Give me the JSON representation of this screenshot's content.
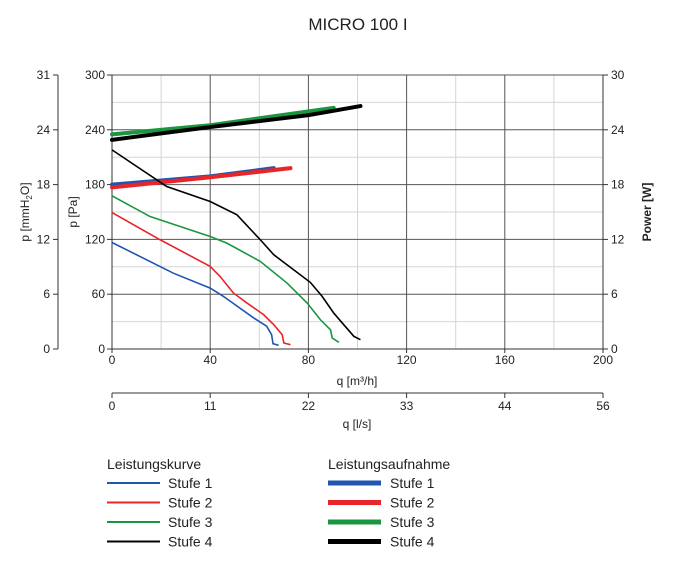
{
  "chart_data": {
    "type": "line",
    "title": "MICRO 100 I",
    "xlabel": "q [m³/h]",
    "x2label": "q [l/s]",
    "ylabel": "p [Pa]",
    "y2label": "p [mmH2O]",
    "y2label_parts": {
      "pre": "p [mmH",
      "sub": "2",
      "post": "O]"
    },
    "y3label": "Power [W]",
    "xlim": [
      0,
      200
    ],
    "xticks": [
      "0",
      "40",
      "80",
      "120",
      "160",
      "200"
    ],
    "x2lim": [
      0,
      56
    ],
    "x2ticks": [
      "0",
      "11",
      "22",
      "33",
      "44",
      "56"
    ],
    "ylim": [
      0,
      300
    ],
    "yticks": [
      "0",
      "60",
      "120",
      "180",
      "240",
      "300"
    ],
    "y2lim": [
      0,
      31
    ],
    "y2ticks": [
      "0",
      "6",
      "12",
      "18",
      "24",
      "31"
    ],
    "y3lim": [
      0,
      30
    ],
    "y3ticks": [
      "0",
      "6",
      "12",
      "18",
      "24",
      "30"
    ],
    "grid": true,
    "legend": {
      "placement": "bottom",
      "group1_title": "Leistungskurve",
      "group2_title": "Leistungsaufnahme"
    },
    "pressure_series": [
      {
        "name": "Stufe 1",
        "color": "#1f56b0",
        "points": [
          [
            0,
            116.6
          ],
          [
            25,
            83
          ],
          [
            40,
            66.7
          ],
          [
            45.4,
            57.6
          ],
          [
            57.7,
            34
          ],
          [
            63,
            25
          ],
          [
            65,
            15.7
          ],
          [
            65.6,
            5.8
          ],
          [
            67.9,
            4
          ]
        ]
      },
      {
        "name": "Stufe 2",
        "color": "#e8262a",
        "points": [
          [
            0,
            149.4
          ],
          [
            19.6,
            119.6
          ],
          [
            40,
            90.4
          ],
          [
            44,
            79.5
          ],
          [
            49.5,
            61.2
          ],
          [
            55,
            50.3
          ],
          [
            61.8,
            37.5
          ],
          [
            65.9,
            26.6
          ],
          [
            69.3,
            15.7
          ],
          [
            70,
            6.6
          ],
          [
            72.7,
            4.7
          ]
        ]
      },
      {
        "name": "Stufe 3",
        "color": "#1a9641",
        "points": [
          [
            0,
            167.7
          ],
          [
            15.5,
            145
          ],
          [
            40,
            123.2
          ],
          [
            46.8,
            115.9
          ],
          [
            60.4,
            95.9
          ],
          [
            71.3,
            72.2
          ],
          [
            79.5,
            50.3
          ],
          [
            84.9,
            32
          ],
          [
            89,
            21
          ],
          [
            89.7,
            12
          ],
          [
            92.4,
            7.3
          ]
        ]
      },
      {
        "name": "Stufe 4",
        "color": "#000000",
        "points": [
          [
            0,
            218
          ],
          [
            22.3,
            177.9
          ],
          [
            40,
            161.5
          ],
          [
            50.9,
            146.9
          ],
          [
            60.4,
            119.6
          ],
          [
            65.9,
            103.2
          ],
          [
            80.8,
            72.9
          ],
          [
            85.6,
            57.6
          ],
          [
            90.3,
            39.4
          ],
          [
            94.4,
            26.6
          ],
          [
            98.5,
            13.9
          ],
          [
            101.2,
            10.2
          ]
        ]
      }
    ],
    "power_series": [
      {
        "name": "Stufe 1",
        "color": "#1f56b0",
        "points": [
          [
            0,
            18.0
          ],
          [
            40,
            18.9
          ],
          [
            65.9,
            19.8
          ]
        ]
      },
      {
        "name": "Stufe 2",
        "color": "#e8262a",
        "points": [
          [
            0,
            17.7
          ],
          [
            40,
            18.8
          ],
          [
            72.7,
            19.8
          ]
        ]
      },
      {
        "name": "Stufe 3",
        "color": "#1a9641",
        "points": [
          [
            0,
            23.5
          ],
          [
            40,
            24.5
          ],
          [
            90.3,
            26.4
          ]
        ]
      },
      {
        "name": "Stufe 4",
        "color": "#000000",
        "points": [
          [
            0,
            22.9
          ],
          [
            40,
            24.3
          ],
          [
            80,
            25.6
          ],
          [
            101.2,
            26.6
          ]
        ]
      }
    ]
  }
}
